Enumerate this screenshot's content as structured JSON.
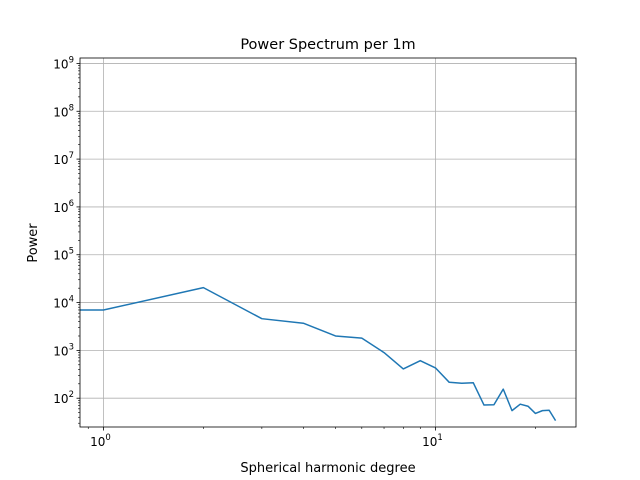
{
  "chart_data": {
    "type": "line",
    "title": "Power Spectrum per 1m",
    "xlabel": "Spherical harmonic degree",
    "ylabel": "Power",
    "x_scale": "log",
    "y_scale": "log",
    "xlim": [
      0.85,
      26.5
    ],
    "ylim": [
      25,
      1300000000
    ],
    "grid": true,
    "x_ticks": [
      {
        "value": 1,
        "base": "10",
        "exp": "0"
      },
      {
        "value": 10,
        "base": "10",
        "exp": "1"
      }
    ],
    "y_ticks": [
      {
        "value": 100,
        "base": "10",
        "exp": "2"
      },
      {
        "value": 1000,
        "base": "10",
        "exp": "3"
      },
      {
        "value": 10000,
        "base": "10",
        "exp": "4"
      },
      {
        "value": 100000,
        "base": "10",
        "exp": "5"
      },
      {
        "value": 1000000,
        "base": "10",
        "exp": "6"
      },
      {
        "value": 10000000,
        "base": "10",
        "exp": "7"
      },
      {
        "value": 100000000,
        "base": "10",
        "exp": "8"
      },
      {
        "value": 1000000000,
        "base": "10",
        "exp": "9"
      }
    ],
    "series": [
      {
        "color": "#1f77b4",
        "x": [
          0.85,
          1,
          2,
          3,
          4,
          5,
          6,
          7,
          8,
          9,
          10,
          11,
          12,
          13,
          14,
          15,
          16,
          17,
          18,
          19,
          20,
          21,
          22,
          23
        ],
        "values": [
          7000,
          7000,
          20500,
          4600,
          3700,
          2000,
          1800,
          900,
          410,
          610,
          430,
          215,
          205,
          210,
          72,
          73,
          155,
          55,
          75,
          68,
          48,
          55,
          56,
          34
        ]
      }
    ]
  }
}
